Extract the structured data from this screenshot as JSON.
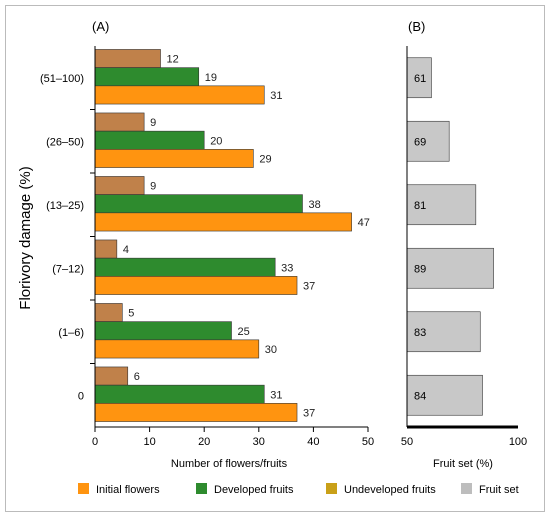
{
  "chart_data": [
    {
      "panel_label": "(A)",
      "type": "bar",
      "orientation": "horizontal",
      "categories": [
        "(51–100)",
        "(26–50)",
        "(13–25)",
        "(7–12)",
        "(1–6)",
        "0"
      ],
      "series": [
        {
          "name": "Undeveloped fruits",
          "color": "#c0814a",
          "values": [
            12,
            9,
            9,
            4,
            5,
            6
          ]
        },
        {
          "name": "Developed fruits",
          "color": "#2e8b2e",
          "values": [
            19,
            20,
            38,
            33,
            25,
            31
          ]
        },
        {
          "name": "Initial flowers",
          "color": "#ff9410",
          "values": [
            31,
            29,
            47,
            37,
            30,
            37
          ]
        }
      ],
      "ylabel": "Florivory damage (%)",
      "xlabel": "Number of flowers/fruits",
      "xlim": [
        0,
        50
      ],
      "xticks": [
        "0",
        "10",
        "20",
        "30",
        "40",
        "50"
      ],
      "grid": false
    },
    {
      "panel_label": "(B)",
      "type": "bar",
      "orientation": "horizontal",
      "categories": [
        "(51–100)",
        "(26–50)",
        "(13–25)",
        "(7–12)",
        "(1–6)",
        "0"
      ],
      "series": [
        {
          "name": "Fruit set",
          "color": "#c8c8c8",
          "values": [
            61,
            69,
            81,
            89,
            83,
            84
          ]
        }
      ],
      "xlabel": "Fruit set (%)",
      "xlim": [
        50,
        100
      ],
      "xticks": [
        "50",
        "100"
      ],
      "grid": false
    }
  ],
  "legend": {
    "placement": "bottom",
    "items": [
      {
        "label": "Initial flowers",
        "color": "#ff9410"
      },
      {
        "label": "Developed fruits",
        "color": "#2e8b2e"
      },
      {
        "label": "Undeveloped fruits",
        "color": "#c9a018"
      },
      {
        "label": "Fruit set",
        "color": "#bdbdbd"
      }
    ]
  }
}
